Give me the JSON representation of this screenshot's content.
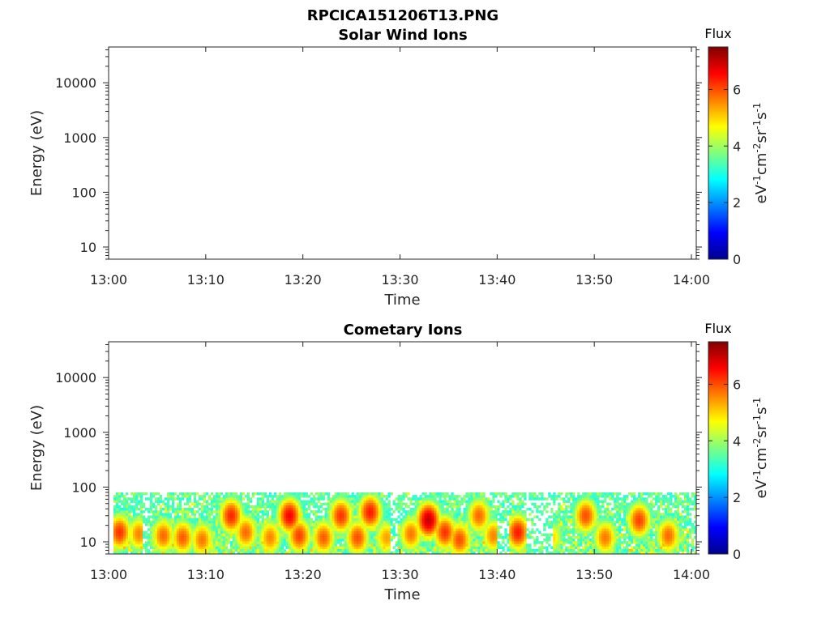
{
  "figure": {
    "title_line1": "RPCICA151206T13.PNG",
    "title_line2": "Solar Wind Ions"
  },
  "chart_data": [
    {
      "type": "heatmap",
      "title": "Solar Wind Ions",
      "xlabel": "Time",
      "ylabel": "Energy (eV)",
      "x_ticks": [
        "13:00",
        "13:10",
        "13:20",
        "13:30",
        "13:40",
        "13:50",
        "14:00"
      ],
      "x_range_minutes": [
        0,
        60.5
      ],
      "y_ticks": [
        "10",
        "100",
        "1000",
        "10000"
      ],
      "y_scale": "log",
      "ylim": [
        6,
        45000
      ],
      "colorbar": {
        "label": "Flux",
        "unit": "eV-1cm-2sr-1s-1",
        "ticks": [
          "0",
          "2",
          "4",
          "6"
        ],
        "range": [
          0,
          7.5
        ],
        "colormap": "jet"
      },
      "cells": []
    },
    {
      "type": "heatmap",
      "title": "Cometary Ions",
      "xlabel": "Time",
      "ylabel": "Energy (eV)",
      "x_ticks": [
        "13:00",
        "13:10",
        "13:20",
        "13:30",
        "13:40",
        "13:50",
        "14:00"
      ],
      "x_range_minutes": [
        0,
        60.5
      ],
      "y_ticks": [
        "10",
        "100",
        "1000",
        "10000"
      ],
      "y_scale": "log",
      "ylim": [
        6,
        45000
      ],
      "energy_range_populated": [
        6,
        80
      ],
      "colorbar": {
        "label": "Flux",
        "unit": "eV-1cm-2sr-1s-1",
        "ticks": [
          "0",
          "2",
          "4",
          "6"
        ],
        "range": [
          0,
          7.5
        ],
        "colormap": "jet"
      },
      "flux_events": [
        {
          "t": 1.0,
          "e": 15,
          "flux": 6.2
        },
        {
          "t": 3.0,
          "e": 14,
          "flux": 5.6
        },
        {
          "t": 5.5,
          "e": 13,
          "flux": 5.8
        },
        {
          "t": 7.5,
          "e": 12,
          "flux": 5.9
        },
        {
          "t": 9.5,
          "e": 11,
          "flux": 5.7
        },
        {
          "t": 12.5,
          "e": 30,
          "flux": 6.3
        },
        {
          "t": 14.0,
          "e": 15,
          "flux": 5.8
        },
        {
          "t": 16.5,
          "e": 12,
          "flux": 5.6
        },
        {
          "t": 18.5,
          "e": 30,
          "flux": 6.6
        },
        {
          "t": 19.5,
          "e": 13,
          "flux": 6.1
        },
        {
          "t": 22.0,
          "e": 12,
          "flux": 5.9
        },
        {
          "t": 23.8,
          "e": 30,
          "flux": 6.2
        },
        {
          "t": 25.5,
          "e": 12,
          "flux": 6.0
        },
        {
          "t": 26.8,
          "e": 35,
          "flux": 6.4
        },
        {
          "t": 28.5,
          "e": 12,
          "flux": 5.4
        },
        {
          "t": 31.0,
          "e": 14,
          "flux": 5.7
        },
        {
          "t": 32.8,
          "e": 25,
          "flux": 7.0
        },
        {
          "t": 34.5,
          "e": 15,
          "flux": 6.2
        },
        {
          "t": 36.0,
          "e": 11,
          "flux": 6.0
        },
        {
          "t": 38.0,
          "e": 30,
          "flux": 5.8
        },
        {
          "t": 39.5,
          "e": 13,
          "flux": 5.6
        },
        {
          "t": 42.0,
          "e": 15,
          "flux": 6.4
        },
        {
          "t": 45.5,
          "e": 12,
          "flux": 5.0
        },
        {
          "t": 49.0,
          "e": 30,
          "flux": 6.0
        },
        {
          "t": 51.0,
          "e": 12,
          "flux": 5.7
        },
        {
          "t": 54.5,
          "e": 25,
          "flux": 6.1
        },
        {
          "t": 57.5,
          "e": 13,
          "flux": 5.8
        }
      ],
      "gaps_minutes": [
        [
          3.5,
          4.2
        ],
        [
          28.8,
          29.6
        ],
        [
          40.0,
          41.2
        ],
        [
          42.8,
          45.6
        ],
        [
          59.6,
          60.5
        ]
      ]
    }
  ]
}
